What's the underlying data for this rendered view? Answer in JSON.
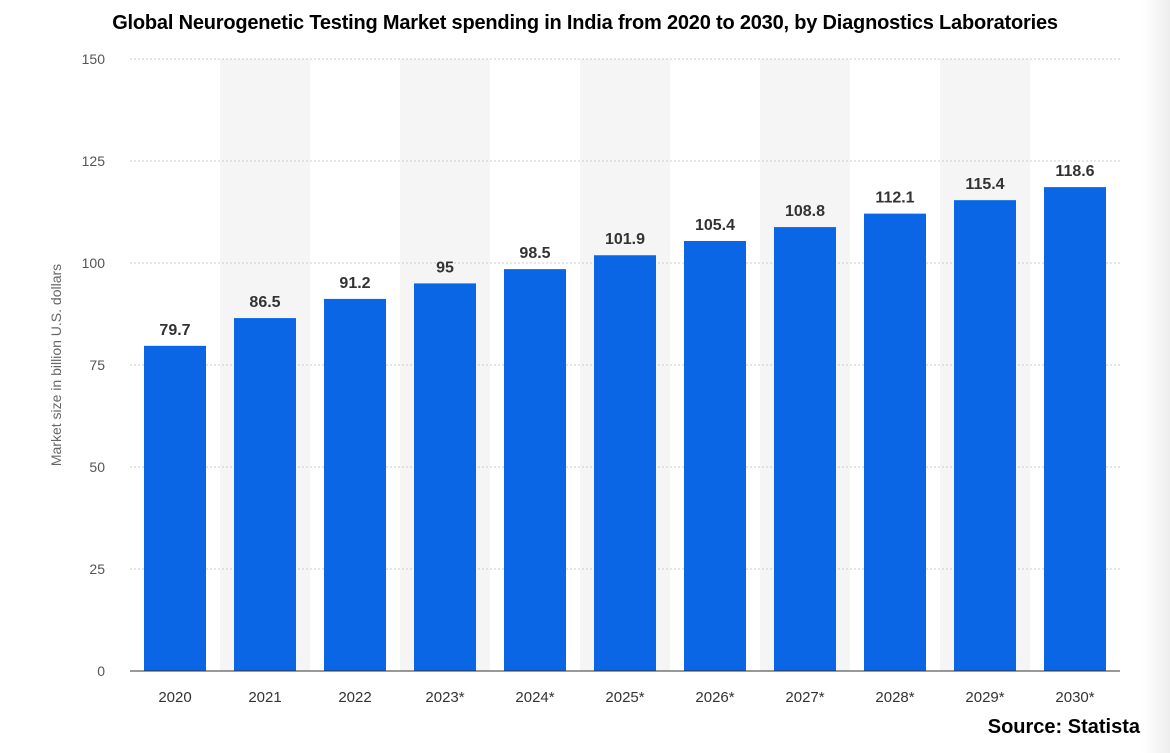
{
  "title": "Global Neurogenetic Testing Market spending in India from 2020 to 2030, by Diagnostics Laboratories",
  "source": "Source: Statista",
  "colors": {
    "bar": "#0a66e4",
    "band": "#f5f5f5",
    "grid": "#cccccc"
  },
  "chart_data": {
    "type": "bar",
    "title": "Global Neurogenetic Testing Market spending in India from 2020 to 2030, by Diagnostics Laboratories",
    "xlabel": "",
    "ylabel": "Market size in billion U.S. dollars",
    "ylim": [
      0,
      150
    ],
    "yticks": [
      0,
      25,
      50,
      75,
      100,
      125,
      150
    ],
    "categories": [
      "2020",
      "2021",
      "2022",
      "2023*",
      "2024*",
      "2025*",
      "2026*",
      "2027*",
      "2028*",
      "2029*",
      "2030*"
    ],
    "values": [
      79.7,
      86.5,
      91.2,
      95,
      98.5,
      101.9,
      105.4,
      108.8,
      112.1,
      115.4,
      118.6
    ],
    "data_labels": [
      "79.7",
      "86.5",
      "91.2",
      "95",
      "98.5",
      "101.9",
      "105.4",
      "108.8",
      "112.1",
      "115.4",
      "118.6"
    ],
    "grid": true,
    "legend": "none"
  }
}
